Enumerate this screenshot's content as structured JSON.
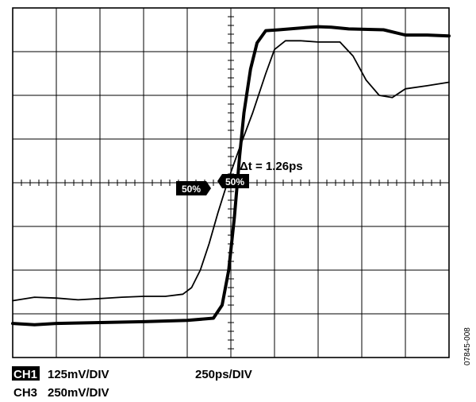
{
  "chart_data": {
    "type": "line",
    "grid": true,
    "grid_divisions": {
      "x": 10,
      "y": 8
    },
    "xlim": [
      0,
      10
    ],
    "ylim": [
      -4,
      4
    ],
    "series": [
      {
        "id": "thick",
        "style": "thick",
        "x": [
          0,
          0.5,
          1.0,
          2.0,
          3.0,
          4.0,
          4.6,
          4.8,
          4.95,
          5.08,
          5.2,
          5.3,
          5.45,
          5.6,
          5.8,
          6.1,
          6.7,
          7.0,
          7.3,
          7.7,
          8.5,
          9.0,
          9.5,
          10
        ],
        "y": [
          -3.22,
          -3.25,
          -3.22,
          -3.2,
          -3.18,
          -3.15,
          -3.1,
          -2.8,
          -2.0,
          -0.8,
          0.6,
          1.6,
          2.6,
          3.2,
          3.48,
          3.5,
          3.55,
          3.57,
          3.56,
          3.52,
          3.5,
          3.38,
          3.38,
          3.36
        ]
      },
      {
        "id": "thin",
        "style": "thin",
        "x": [
          0,
          0.5,
          1.0,
          1.5,
          2.0,
          2.5,
          3.0,
          3.5,
          3.9,
          4.1,
          4.3,
          4.5,
          4.7,
          4.95,
          5.2,
          5.5,
          5.8,
          6.0,
          6.25,
          6.6,
          7.0,
          7.5,
          7.8,
          8.1,
          8.4,
          8.7,
          9.0,
          9.5,
          10
        ],
        "y": [
          -2.7,
          -2.62,
          -2.64,
          -2.68,
          -2.65,
          -2.62,
          -2.6,
          -2.6,
          -2.55,
          -2.4,
          -2.0,
          -1.4,
          -0.7,
          0.1,
          0.8,
          1.6,
          2.5,
          3.05,
          3.25,
          3.25,
          3.22,
          3.22,
          2.9,
          2.35,
          2.0,
          1.95,
          2.15,
          2.22,
          2.3
        ]
      }
    ],
    "annotations": {
      "delta_t": "Δt = 1.26ps",
      "marker_left": "50%",
      "marker_right": "50%"
    }
  },
  "footer": {
    "ch1_label": "CH1",
    "ch1_scale": "125mV/DIV",
    "ch3_label": "CH3",
    "ch3_scale": "250mV/DIV",
    "time_scale": "250ps/DIV"
  },
  "figure_id": "07845-008"
}
